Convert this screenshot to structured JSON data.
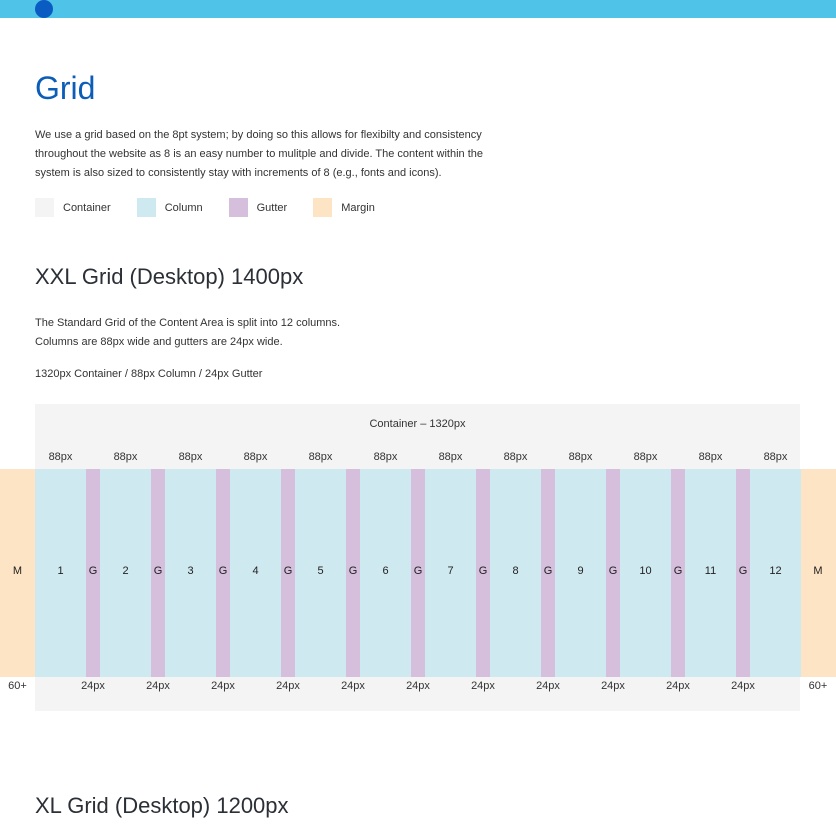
{
  "colors": {
    "topbar": "#4fc3e8",
    "topdot": "#0a5cc2",
    "container": "#f4f4f4",
    "column": "#cfe9f1",
    "gutter": "#d5bfdd",
    "margin": "#fde4c4"
  },
  "page": {
    "title": "Grid",
    "intro": [
      "We use a grid based on the 8pt system; by doing so this allows for flexibilty and consistency",
      "throughout the website as 8 is an easy number to mulitple and divide. The content within the",
      "system is also sized to consistently stay with increments of 8 (e.g., fonts and icons)."
    ]
  },
  "legend": [
    {
      "label": "Container",
      "color": "#f4f4f4"
    },
    {
      "label": "Column",
      "color": "#cfe9f1"
    },
    {
      "label": "Gutter",
      "color": "#d5bfdd"
    },
    {
      "label": "Margin",
      "color": "#fde4c4"
    }
  ],
  "xxl": {
    "heading": "XXL Grid (Desktop) 1400px",
    "description": [
      "The Standard Grid of the Content Area is split into 12 columns.",
      "Columns are 88px wide and gutters are 24px wide."
    ],
    "summary": "1320px Container / 88px Column / 24px Gutter",
    "container_label": "Container – 1320px",
    "column_width_label": "88px",
    "gutter_width_label": "24px",
    "gutter_letter": "G",
    "margin_letter": "M",
    "margin_label": "60+",
    "columns": [
      "1",
      "2",
      "3",
      "4",
      "5",
      "6",
      "7",
      "8",
      "9",
      "10",
      "11",
      "12"
    ]
  },
  "xl": {
    "heading": "XL Grid (Desktop) 1200px"
  }
}
